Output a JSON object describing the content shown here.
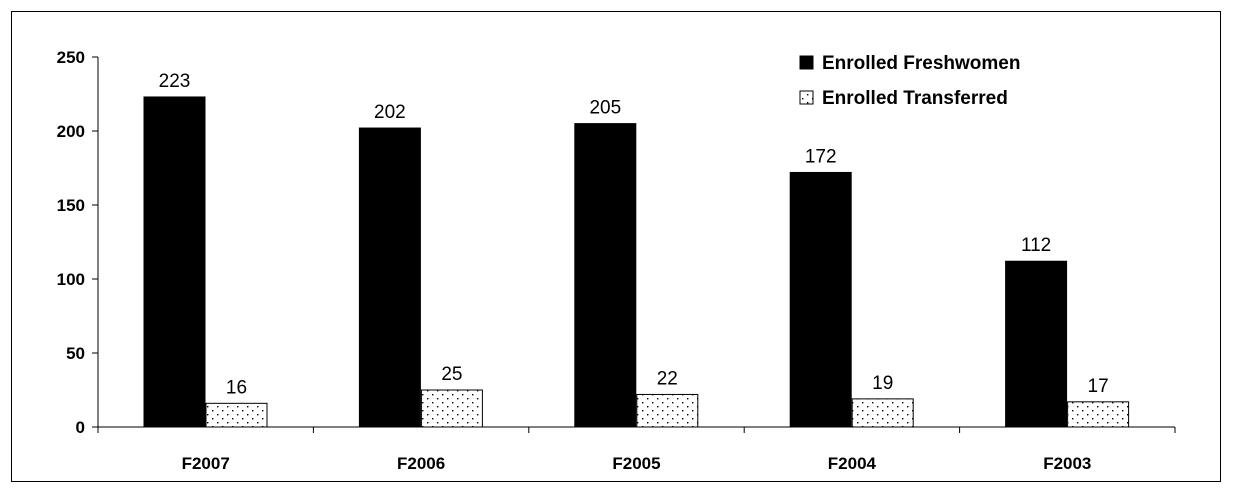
{
  "chart_data": {
    "type": "bar",
    "categories": [
      "F2007",
      "F2006",
      "F2005",
      "F2004",
      "F2003"
    ],
    "series": [
      {
        "name": "Enrolled Freshwomen",
        "values": [
          223,
          202,
          205,
          172,
          112
        ],
        "color": "#000000",
        "pattern": "solid"
      },
      {
        "name": "Enrolled Transferred",
        "values": [
          16,
          25,
          22,
          19,
          17
        ],
        "color": "#ffffff",
        "pattern": "dotted"
      }
    ],
    "title": "",
    "xlabel": "",
    "ylabel": "",
    "ylim": [
      0,
      250
    ],
    "yticks": [
      0,
      50,
      100,
      150,
      200,
      250
    ],
    "grid": false,
    "legend_position": "top-right"
  }
}
